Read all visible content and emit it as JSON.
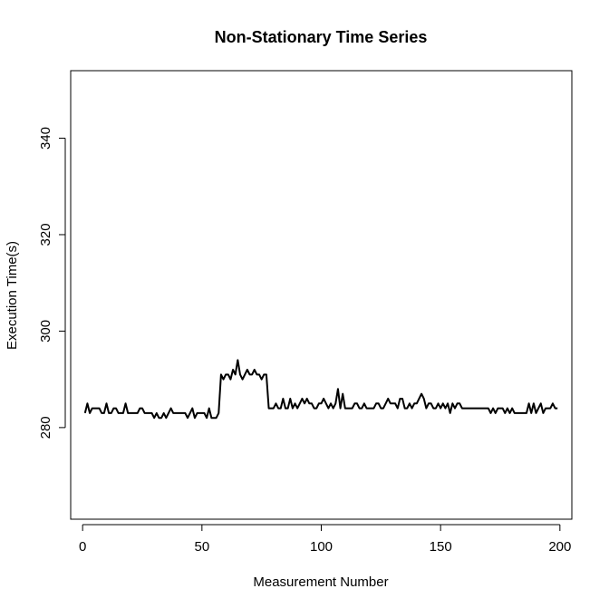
{
  "chart_data": {
    "type": "line",
    "title": "Non-Stationary Time Series",
    "xlabel": "Measurement Number",
    "ylabel": "Execution Time(s)",
    "xlim": [
      -5,
      205
    ],
    "ylim": [
      261,
      354
    ],
    "xticks": [
      0,
      50,
      100,
      150,
      200
    ],
    "yticks": [
      280,
      300,
      320,
      340
    ],
    "grid": false,
    "legend": "none",
    "series": [
      {
        "color": "#000000",
        "x": [
          1,
          2,
          3,
          4,
          5,
          6,
          7,
          8,
          9,
          10,
          11,
          12,
          13,
          14,
          15,
          16,
          17,
          18,
          19,
          20,
          21,
          22,
          23,
          24,
          25,
          26,
          27,
          28,
          29,
          30,
          31,
          32,
          33,
          34,
          35,
          36,
          37,
          38,
          39,
          40,
          41,
          42,
          43,
          44,
          45,
          46,
          47,
          48,
          49,
          50,
          51,
          52,
          53,
          54,
          55,
          56,
          57,
          58,
          59,
          60,
          61,
          62,
          63,
          64,
          65,
          66,
          67,
          68,
          69,
          70,
          71,
          72,
          73,
          74,
          75,
          76,
          77,
          78,
          79,
          80,
          81,
          82,
          83,
          84,
          85,
          86,
          87,
          88,
          89,
          90,
          91,
          92,
          93,
          94,
          95,
          96,
          97,
          98,
          99,
          100,
          101,
          102,
          103,
          104,
          105,
          106,
          107,
          108,
          109,
          110,
          111,
          112,
          113,
          114,
          115,
          116,
          117,
          118,
          119,
          120,
          121,
          122,
          123,
          124,
          125,
          126,
          127,
          128,
          129,
          130,
          131,
          132,
          133,
          134,
          135,
          136,
          137,
          138,
          139,
          140,
          141,
          142,
          143,
          144,
          145,
          146,
          147,
          148,
          149,
          150,
          151,
          152,
          153,
          154,
          155,
          156,
          157,
          158,
          159,
          160,
          161,
          162,
          163,
          164,
          165,
          166,
          167,
          168,
          169,
          170,
          171,
          172,
          173,
          174,
          175,
          176,
          177,
          178,
          179,
          180,
          181,
          182,
          183,
          184,
          185,
          186,
          187,
          188,
          189,
          190,
          191,
          192,
          193,
          194,
          195,
          196,
          197,
          198,
          199
        ],
        "values": [
          283,
          285,
          283,
          284,
          284,
          284,
          284,
          283,
          283,
          285,
          283,
          283,
          284,
          284,
          283,
          283,
          283,
          285,
          283,
          283,
          283,
          283,
          283,
          284,
          284,
          283,
          283,
          283,
          283,
          282,
          283,
          282,
          282,
          283,
          282,
          283,
          284,
          283,
          283,
          283,
          283,
          283,
          283,
          282,
          283,
          284,
          282,
          283,
          283,
          283,
          283,
          282,
          284,
          282,
          282,
          282,
          283,
          291,
          290,
          291,
          291,
          290,
          292,
          291,
          294,
          291,
          290,
          291,
          292,
          291,
          291,
          292,
          291,
          291,
          290,
          291,
          291,
          284,
          284,
          284,
          285,
          284,
          284,
          286,
          284,
          284,
          286,
          284,
          285,
          284,
          285,
          286,
          285,
          286,
          285,
          285,
          284,
          284,
          285,
          285,
          286,
          285,
          284,
          285,
          284,
          285,
          288,
          284,
          287,
          284,
          284,
          284,
          284,
          285,
          285,
          284,
          284,
          285,
          284,
          284,
          284,
          284,
          285,
          285,
          284,
          284,
          285,
          286,
          285,
          285,
          285,
          284,
          286,
          286,
          284,
          284,
          285,
          284,
          285,
          285,
          286,
          287,
          286,
          284,
          285,
          285,
          284,
          284,
          285,
          284,
          285,
          284,
          285,
          283,
          285,
          284,
          285,
          285,
          284,
          284,
          284,
          284,
          284,
          284,
          284,
          284,
          284,
          284,
          284,
          284,
          283,
          284,
          283,
          284,
          284,
          284,
          283,
          284,
          283,
          284,
          283,
          283,
          283,
          283,
          283,
          283,
          285,
          283,
          285,
          283,
          284,
          285,
          283,
          284,
          284,
          284,
          285,
          284,
          284
        ]
      }
    ]
  }
}
